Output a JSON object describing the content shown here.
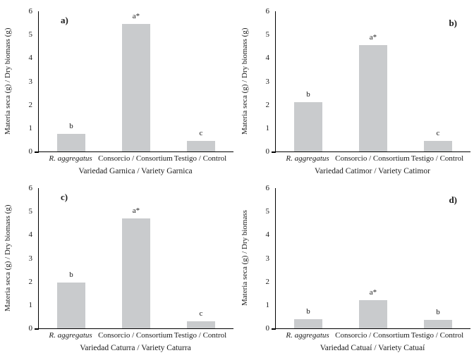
{
  "chart_data": [
    {
      "type": "bar",
      "panel_label": "a)",
      "panel_label_side": "left",
      "title": "",
      "ylabel": "Materia seca (g) / Dry biomass (g)",
      "xlabel": "Variedad Garnica / Variety Garnica",
      "categories": [
        "R. aggregatus",
        "Consorcio / Consortium",
        "Testigo / Control"
      ],
      "categories_italic": [
        true,
        false,
        false
      ],
      "values": [
        0.75,
        5.45,
        0.45
      ],
      "annotations": [
        "b",
        "a*",
        "c"
      ],
      "ylim": [
        0,
        6
      ],
      "yticks": [
        0,
        1,
        2,
        3,
        4,
        5,
        6
      ],
      "bar_color": "#c9cbcd",
      "axis_color": "#000000",
      "grid": false,
      "legend": false
    },
    {
      "type": "bar",
      "panel_label": "b)",
      "panel_label_side": "right",
      "title": "",
      "ylabel": "Materia seca (g) / Dry biomass (g)",
      "xlabel": "Variedad Catimor / Variety Catimor",
      "categories": [
        "R. aggregatus",
        "Consorcio / Consortium",
        "Testigo / Control"
      ],
      "categories_italic": [
        true,
        false,
        false
      ],
      "values": [
        2.1,
        4.55,
        0.45
      ],
      "annotations": [
        "b",
        "a*",
        "c"
      ],
      "ylim": [
        0,
        6
      ],
      "yticks": [
        0,
        1,
        2,
        3,
        4,
        5,
        6
      ],
      "bar_color": "#c9cbcd",
      "axis_color": "#000000",
      "grid": false,
      "legend": false
    },
    {
      "type": "bar",
      "panel_label": "c)",
      "panel_label_side": "left",
      "title": "",
      "ylabel": "Materia seca (g) / Dry biomass (g)",
      "xlabel": "Variedad Caturra / Variety Caturra",
      "categories": [
        "R. aggregatus",
        "Consorcio / Consortium",
        "Testigo / Control"
      ],
      "categories_italic": [
        true,
        false,
        false
      ],
      "values": [
        1.95,
        4.7,
        0.3
      ],
      "annotations": [
        "b",
        "a*",
        "c"
      ],
      "ylim": [
        0,
        6
      ],
      "yticks": [
        0,
        1,
        2,
        3,
        4,
        5,
        6
      ],
      "bar_color": "#c9cbcd",
      "axis_color": "#000000",
      "grid": false,
      "legend": false
    },
    {
      "type": "bar",
      "panel_label": "d)",
      "panel_label_side": "right",
      "title": "",
      "ylabel": "Materia seca (g) / Dry biomass",
      "xlabel": "Variedad Catuaí / Variety Catuaí",
      "categories": [
        "R. aggregatus",
        "Consorcio / Consortium",
        "Testigo / Control"
      ],
      "categories_italic": [
        true,
        false,
        false
      ],
      "values": [
        0.4,
        1.2,
        0.35
      ],
      "annotations": [
        "b",
        "a*",
        "b"
      ],
      "ylim": [
        0,
        6
      ],
      "yticks": [
        0,
        1,
        2,
        3,
        4,
        5,
        6
      ],
      "bar_color": "#c9cbcd",
      "axis_color": "#000000",
      "grid": false,
      "legend": false
    }
  ]
}
